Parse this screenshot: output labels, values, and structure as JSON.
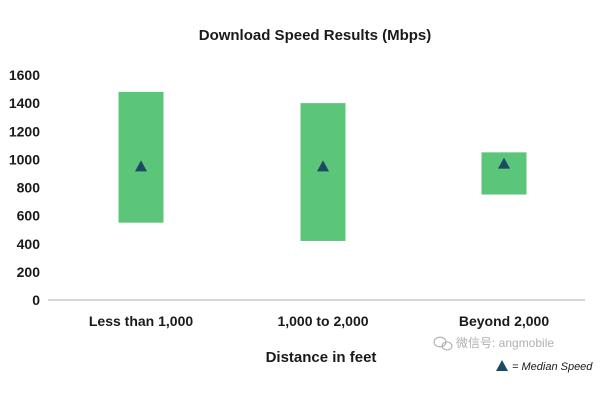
{
  "chart_data": {
    "type": "bar",
    "title": "Download Speed Results (Mbps)",
    "xlabel": "Distance in feet",
    "ylabel": "",
    "ylim": [
      0,
      1600
    ],
    "yticks": [
      0,
      200,
      400,
      600,
      800,
      1000,
      1200,
      1400,
      1600
    ],
    "categories": [
      "Less than 1,000",
      "1,000 to 2,000",
      "Beyond 2,000"
    ],
    "series": [
      {
        "name": "",
        "kind": "range",
        "low": [
          550,
          420,
          750
        ],
        "high": [
          1480,
          1400,
          1050
        ]
      },
      {
        "name": "Median Speed",
        "kind": "marker",
        "values": [
          950,
          950,
          970
        ]
      }
    ],
    "legend": {
      "symbol": "▲",
      "text": "= Median Speed",
      "position": "bottom-right"
    },
    "grid": false,
    "colors": {
      "range": "#5bc57a",
      "marker": "#1d4a63",
      "axis": "#bdbdbd",
      "text": "#1a1a1a"
    }
  },
  "watermark": {
    "text": "微信号: angmobile"
  }
}
